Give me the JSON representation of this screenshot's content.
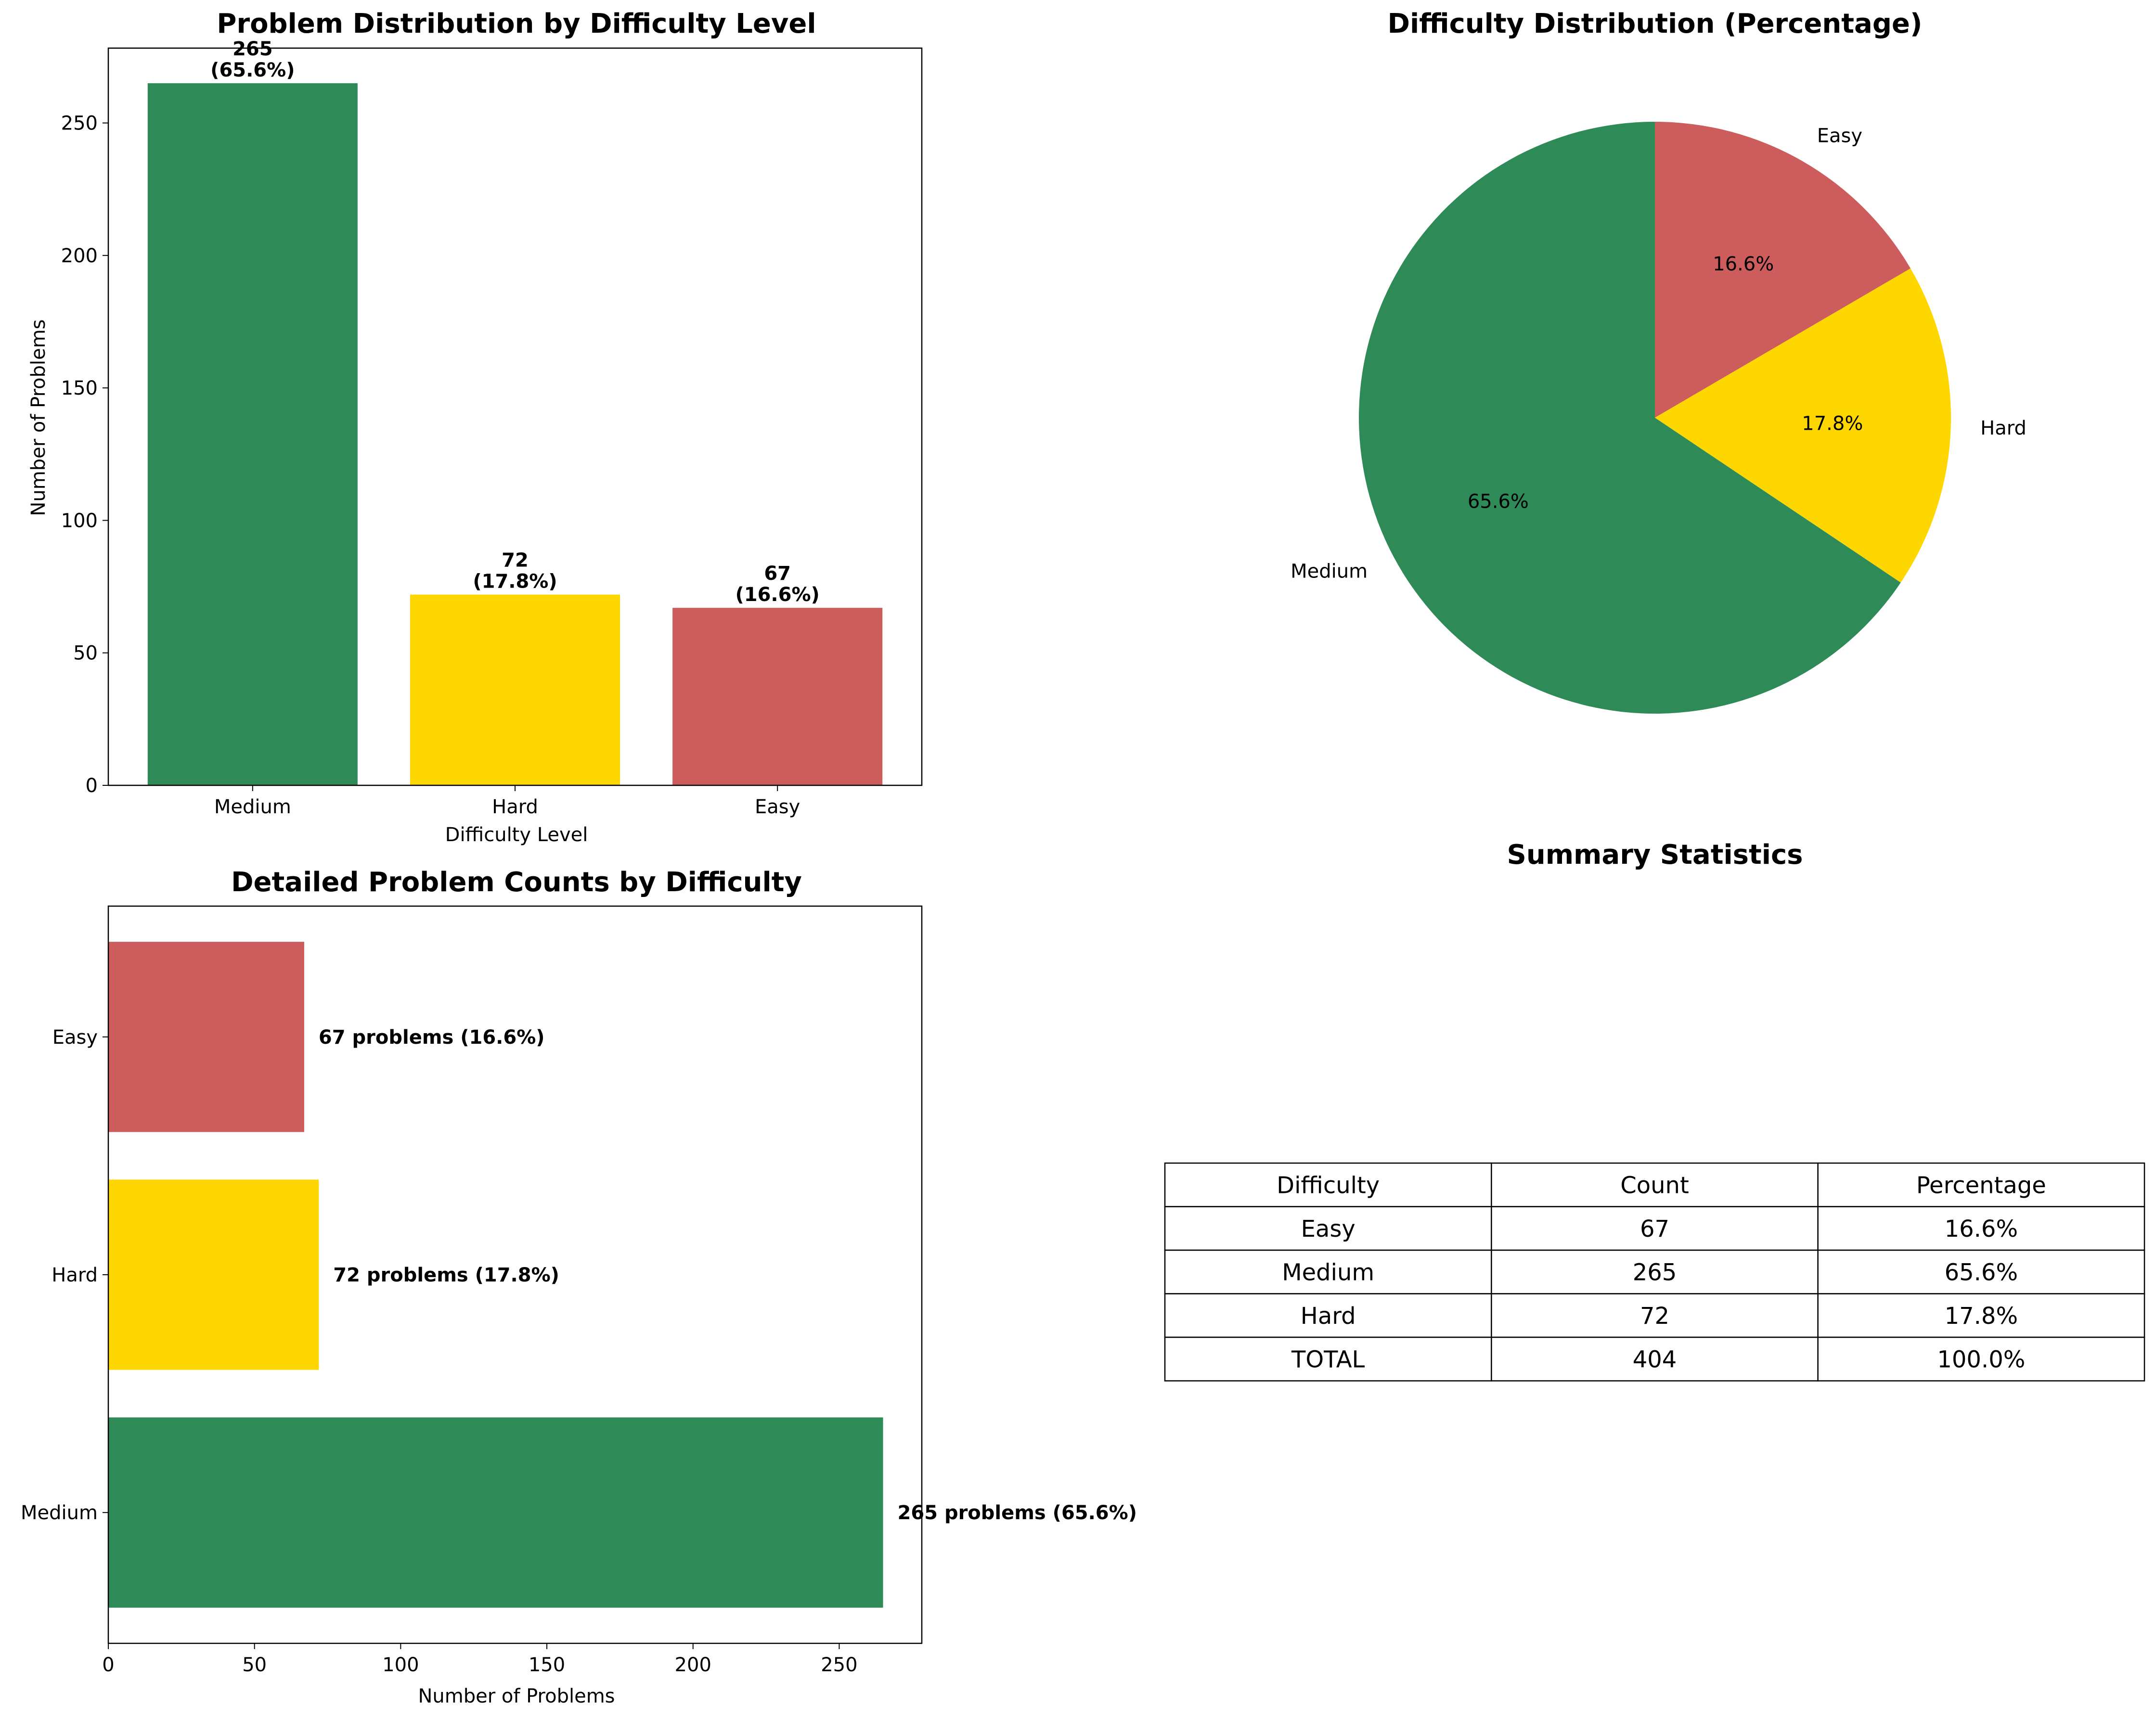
{
  "colors": {
    "Medium": "#2e8b57",
    "Hard": "#ffd700",
    "Easy": "#cd5c5c"
  },
  "chart_data": [
    {
      "id": "bar",
      "type": "bar",
      "title": "Problem Distribution by Difficulty Level",
      "xlabel": "Difficulty Level",
      "ylabel": "Number of Problems",
      "categories": [
        "Medium",
        "Hard",
        "Easy"
      ],
      "values": [
        265,
        72,
        67
      ],
      "percentages": [
        "65.6%",
        "17.8%",
        "16.6%"
      ],
      "data_labels": [
        [
          "265",
          "(65.6%)"
        ],
        [
          "72",
          "(17.8%)"
        ],
        [
          "67",
          "(16.6%)"
        ]
      ],
      "ylim": [
        0,
        278.25
      ],
      "yticks": [
        0,
        50,
        100,
        150,
        200,
        250
      ],
      "grid": false
    },
    {
      "id": "pie",
      "type": "pie",
      "title": "Difficulty Distribution (Percentage)",
      "labels": [
        "Easy",
        "Hard",
        "Medium"
      ],
      "values": [
        67,
        72,
        265
      ],
      "autopct": [
        "16.6%",
        "17.8%",
        "65.6%"
      ],
      "start_angle": 90,
      "direction": "clockwise"
    },
    {
      "id": "barh",
      "type": "bar",
      "orientation": "horizontal",
      "title": "Detailed Problem Counts by Difficulty",
      "xlabel": "Number of Problems",
      "ylabel": "",
      "categories": [
        "Medium",
        "Hard",
        "Easy"
      ],
      "values": [
        265,
        72,
        67
      ],
      "data_labels": [
        "265 problems (65.6%)",
        "72 problems (17.8%)",
        "67 problems (16.6%)"
      ],
      "xlim": [
        0,
        278.25
      ],
      "xticks": [
        0,
        50,
        100,
        150,
        200,
        250
      ],
      "grid": false
    },
    {
      "id": "table",
      "type": "table",
      "title": "Summary Statistics",
      "columns": [
        "Difficulty",
        "Count",
        "Percentage"
      ],
      "rows": [
        [
          "Easy",
          "67",
          "16.6%"
        ],
        [
          "Medium",
          "265",
          "65.6%"
        ],
        [
          "Hard",
          "72",
          "17.8%"
        ],
        [
          "TOTAL",
          "404",
          "100.0%"
        ]
      ]
    }
  ]
}
